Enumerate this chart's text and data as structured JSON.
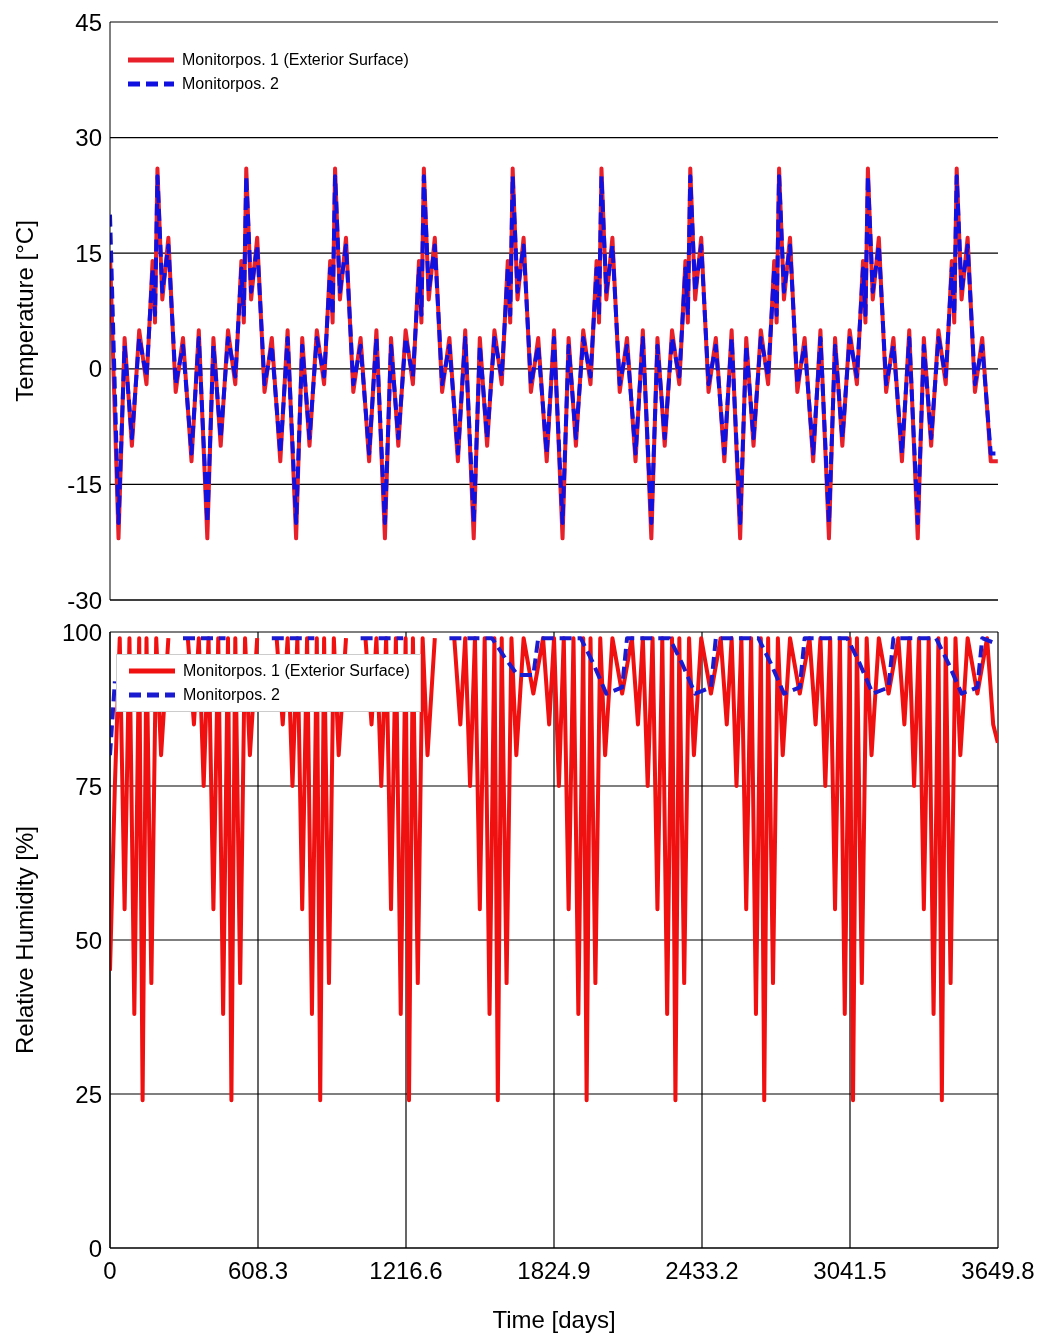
{
  "chart_data": [
    {
      "type": "line",
      "ylabel": "Temperature [°C]",
      "xlim": [
        0,
        3649.8
      ],
      "xticks": [
        0,
        608.3,
        1216.6,
        1824.9,
        2433.2,
        3041.5,
        3649.8
      ],
      "ylim": [
        -30,
        45
      ],
      "yticks": [
        -30,
        -15,
        0,
        15,
        30,
        45
      ],
      "tick_labels": "y",
      "grid": true,
      "legend": "top left",
      "marker": "none",
      "x": [
        0,
        35,
        60,
        90,
        120,
        150,
        175,
        185,
        195,
        215,
        240,
        270,
        300,
        335,
        365,
        400,
        425,
        455,
        485,
        515,
        540,
        550,
        560,
        580,
        605,
        635,
        665,
        700,
        730,
        765,
        790,
        820,
        850,
        880,
        905,
        915,
        925,
        945,
        970,
        1000,
        1030,
        1065,
        1095,
        1130,
        1155,
        1185,
        1215,
        1245,
        1270,
        1280,
        1290,
        1310,
        1335,
        1365,
        1395,
        1430,
        1460,
        1495,
        1520,
        1550,
        1580,
        1610,
        1635,
        1645,
        1655,
        1675,
        1700,
        1730,
        1760,
        1795,
        1825,
        1860,
        1885,
        1915,
        1945,
        1975,
        2000,
        2010,
        2020,
        2040,
        2065,
        2095,
        2125,
        2160,
        2190,
        2225,
        2250,
        2280,
        2310,
        2340,
        2365,
        2375,
        2385,
        2405,
        2430,
        2460,
        2490,
        2525,
        2555,
        2590,
        2615,
        2645,
        2675,
        2705,
        2730,
        2740,
        2750,
        2770,
        2795,
        2825,
        2855,
        2890,
        2920,
        2955,
        2980,
        3010,
        3040,
        3070,
        3095,
        3105,
        3115,
        3135,
        3160,
        3190,
        3220,
        3255,
        3285,
        3320,
        3345,
        3375,
        3405,
        3435,
        3460,
        3470,
        3480,
        3500,
        3525,
        3555,
        3585,
        3620,
        3649
      ],
      "series": [
        {
          "name": "Monitorpos. 1 (Exterior Surface)",
          "color": "#e8202a",
          "line_style": "solid",
          "values": [
            15,
            -22,
            4,
            -10,
            5,
            -2,
            14,
            6,
            26,
            9,
            17,
            -3,
            4,
            -12,
            5,
            -22,
            4,
            -10,
            5,
            -2,
            14,
            6,
            26,
            9,
            17,
            -3,
            4,
            -12,
            5,
            -22,
            4,
            -10,
            5,
            -2,
            14,
            6,
            26,
            9,
            17,
            -3,
            4,
            -12,
            5,
            -22,
            4,
            -10,
            5,
            -2,
            14,
            6,
            26,
            9,
            17,
            -3,
            4,
            -12,
            5,
            -22,
            4,
            -10,
            5,
            -2,
            14,
            6,
            26,
            9,
            17,
            -3,
            4,
            -12,
            5,
            -22,
            4,
            -10,
            5,
            -2,
            14,
            6,
            26,
            9,
            17,
            -3,
            4,
            -12,
            5,
            -22,
            4,
            -10,
            5,
            -2,
            14,
            6,
            26,
            9,
            17,
            -3,
            4,
            -12,
            5,
            -22,
            4,
            -10,
            5,
            -2,
            14,
            6,
            26,
            9,
            17,
            -3,
            4,
            -12,
            5,
            -22,
            4,
            -10,
            5,
            -2,
            14,
            6,
            26,
            9,
            17,
            -3,
            4,
            -12,
            5,
            -22,
            4,
            -10,
            5,
            -2,
            14,
            6,
            26,
            9,
            17,
            -3,
            4,
            -12,
            -12
          ]
        },
        {
          "name": "Monitorpos. 2",
          "color": "#1010e0",
          "line_style": "dashed",
          "values": [
            20,
            -20,
            3,
            -9,
            4,
            -1,
            13,
            7,
            25,
            10,
            16,
            -2,
            3,
            -11,
            4,
            -20,
            3,
            -9,
            4,
            -1,
            13,
            7,
            25,
            10,
            16,
            -2,
            3,
            -11,
            4,
            -20,
            3,
            -9,
            4,
            -1,
            13,
            7,
            25,
            10,
            16,
            -2,
            3,
            -11,
            4,
            -20,
            3,
            -9,
            4,
            -1,
            13,
            7,
            25,
            10,
            16,
            -2,
            3,
            -11,
            4,
            -20,
            3,
            -9,
            4,
            -1,
            13,
            7,
            25,
            10,
            16,
            -2,
            3,
            -11,
            4,
            -20,
            3,
            -9,
            4,
            -1,
            13,
            7,
            25,
            10,
            16,
            -2,
            3,
            -11,
            4,
            -20,
            3,
            -9,
            4,
            -1,
            13,
            7,
            25,
            10,
            16,
            -2,
            3,
            -11,
            4,
            -20,
            3,
            -9,
            4,
            -1,
            13,
            7,
            25,
            10,
            16,
            -2,
            3,
            -11,
            4,
            -20,
            3,
            -9,
            4,
            -1,
            13,
            7,
            25,
            10,
            16,
            -2,
            3,
            -11,
            4,
            -20,
            3,
            -9,
            4,
            -1,
            13,
            7,
            25,
            10,
            16,
            -2,
            3,
            -11,
            -11
          ]
        }
      ]
    },
    {
      "type": "line",
      "xlabel": "Time [days]",
      "ylabel": "Relative Humidity [%]",
      "xlim": [
        0,
        3649.8
      ],
      "xticks": [
        0,
        608.3,
        1216.6,
        1824.9,
        2433.2,
        3041.5,
        3649.8
      ],
      "ylim": [
        0,
        100
      ],
      "yticks": [
        0,
        25,
        50,
        75,
        100
      ],
      "grid": true,
      "legend": "top left",
      "marker": "none",
      "series": [
        {
          "name": "Monitorpos. 1 (Exterior Surface)",
          "color": "#f01010",
          "line_style": "solid",
          "x": [
            0,
            20,
            40,
            60,
            80,
            100,
            120,
            134,
            150,
            170,
            190,
            210,
            240,
            280,
            320,
            345,
            365,
            385,
            405,
            425,
            445,
            465,
            485,
            499,
            515,
            535,
            555,
            575,
            605,
            645,
            685,
            710,
            730,
            750,
            770,
            790,
            810,
            830,
            850,
            864,
            880,
            900,
            920,
            940,
            970,
            1010,
            1050,
            1075,
            1095,
            1115,
            1135,
            1155,
            1175,
            1195,
            1215,
            1229,
            1245,
            1265,
            1285,
            1305,
            1335,
            1375,
            1415,
            1440,
            1460,
            1480,
            1500,
            1520,
            1540,
            1560,
            1580,
            1594,
            1610,
            1630,
            1650,
            1670,
            1700,
            1740,
            1780,
            1805,
            1825,
            1845,
            1865,
            1885,
            1905,
            1925,
            1945,
            1959,
            1975,
            1995,
            2015,
            2035,
            2065,
            2105,
            2145,
            2170,
            2190,
            2210,
            2230,
            2250,
            2270,
            2290,
            2310,
            2324,
            2340,
            2360,
            2380,
            2400,
            2430,
            2470,
            2510,
            2535,
            2555,
            2575,
            2595,
            2615,
            2635,
            2655,
            2675,
            2689,
            2705,
            2725,
            2745,
            2765,
            2795,
            2835,
            2875,
            2900,
            2920,
            2940,
            2960,
            2980,
            3000,
            3020,
            3040,
            3054,
            3070,
            3090,
            3110,
            3130,
            3160,
            3200,
            3240,
            3265,
            3285,
            3305,
            3325,
            3345,
            3365,
            3385,
            3405,
            3419,
            3435,
            3455,
            3475,
            3495,
            3525,
            3565,
            3605,
            3630,
            3649
          ],
          "values": [
            45,
            75,
            99,
            55,
            99,
            38,
            99,
            24,
            99,
            43,
            99,
            80,
            99,
            null,
            99,
            85,
            99,
            75,
            99,
            55,
            99,
            38,
            99,
            24,
            99,
            43,
            99,
            80,
            99,
            null,
            99,
            85,
            99,
            75,
            99,
            55,
            99,
            38,
            99,
            24,
            99,
            43,
            99,
            80,
            99,
            null,
            99,
            85,
            99,
            75,
            99,
            55,
            99,
            38,
            99,
            24,
            99,
            43,
            99,
            80,
            99,
            null,
            99,
            85,
            99,
            75,
            99,
            55,
            99,
            38,
            99,
            24,
            99,
            43,
            99,
            80,
            99,
            90,
            99,
            85,
            99,
            75,
            99,
            55,
            99,
            38,
            99,
            24,
            99,
            43,
            99,
            80,
            99,
            90,
            99,
            85,
            99,
            75,
            99,
            55,
            99,
            38,
            99,
            24,
            99,
            43,
            99,
            80,
            99,
            90,
            99,
            85,
            99,
            75,
            99,
            55,
            99,
            38,
            99,
            24,
            99,
            43,
            99,
            80,
            99,
            90,
            99,
            85,
            99,
            75,
            99,
            55,
            99,
            38,
            99,
            24,
            99,
            43,
            99,
            80,
            99,
            90,
            99,
            85,
            99,
            75,
            99,
            55,
            99,
            38,
            99,
            24,
            99,
            43,
            99,
            80,
            99,
            90,
            99,
            85,
            82
          ]
        },
        {
          "name": "Monitorpos. 2",
          "color": "#1a1ad0",
          "line_style": "dashed",
          "x": [
            0,
            20,
            60,
            110,
            160,
            215,
            280,
            300,
            365,
            475,
            525,
            580,
            645,
            665,
            730,
            840,
            890,
            945,
            1010,
            1030,
            1095,
            1205,
            1255,
            1310,
            1375,
            1395,
            1460,
            1570,
            1620,
            1675,
            1740,
            1760,
            1825,
            1935,
            1985,
            2040,
            2105,
            2125,
            2190,
            2300,
            2350,
            2405,
            2470,
            2490,
            2555,
            2665,
            2715,
            2770,
            2835,
            2855,
            2920,
            3030,
            3080,
            3135,
            3200,
            3220,
            3285,
            3395,
            3445,
            3500,
            3565,
            3585,
            3649
          ],
          "values": [
            80,
            92,
            null,
            null,
            null,
            null,
            null,
            99,
            99,
            99,
            null,
            null,
            null,
            99,
            99,
            99,
            null,
            null,
            null,
            99,
            99,
            99,
            null,
            null,
            null,
            99,
            99,
            99,
            96,
            93,
            93,
            99,
            99,
            99,
            95,
            90,
            91,
            99,
            99,
            99,
            95,
            90,
            91,
            99,
            99,
            99,
            95,
            90,
            91,
            99,
            99,
            99,
            95,
            90,
            91,
            99,
            99,
            99,
            95,
            90,
            91,
            99,
            98
          ]
        }
      ]
    }
  ]
}
